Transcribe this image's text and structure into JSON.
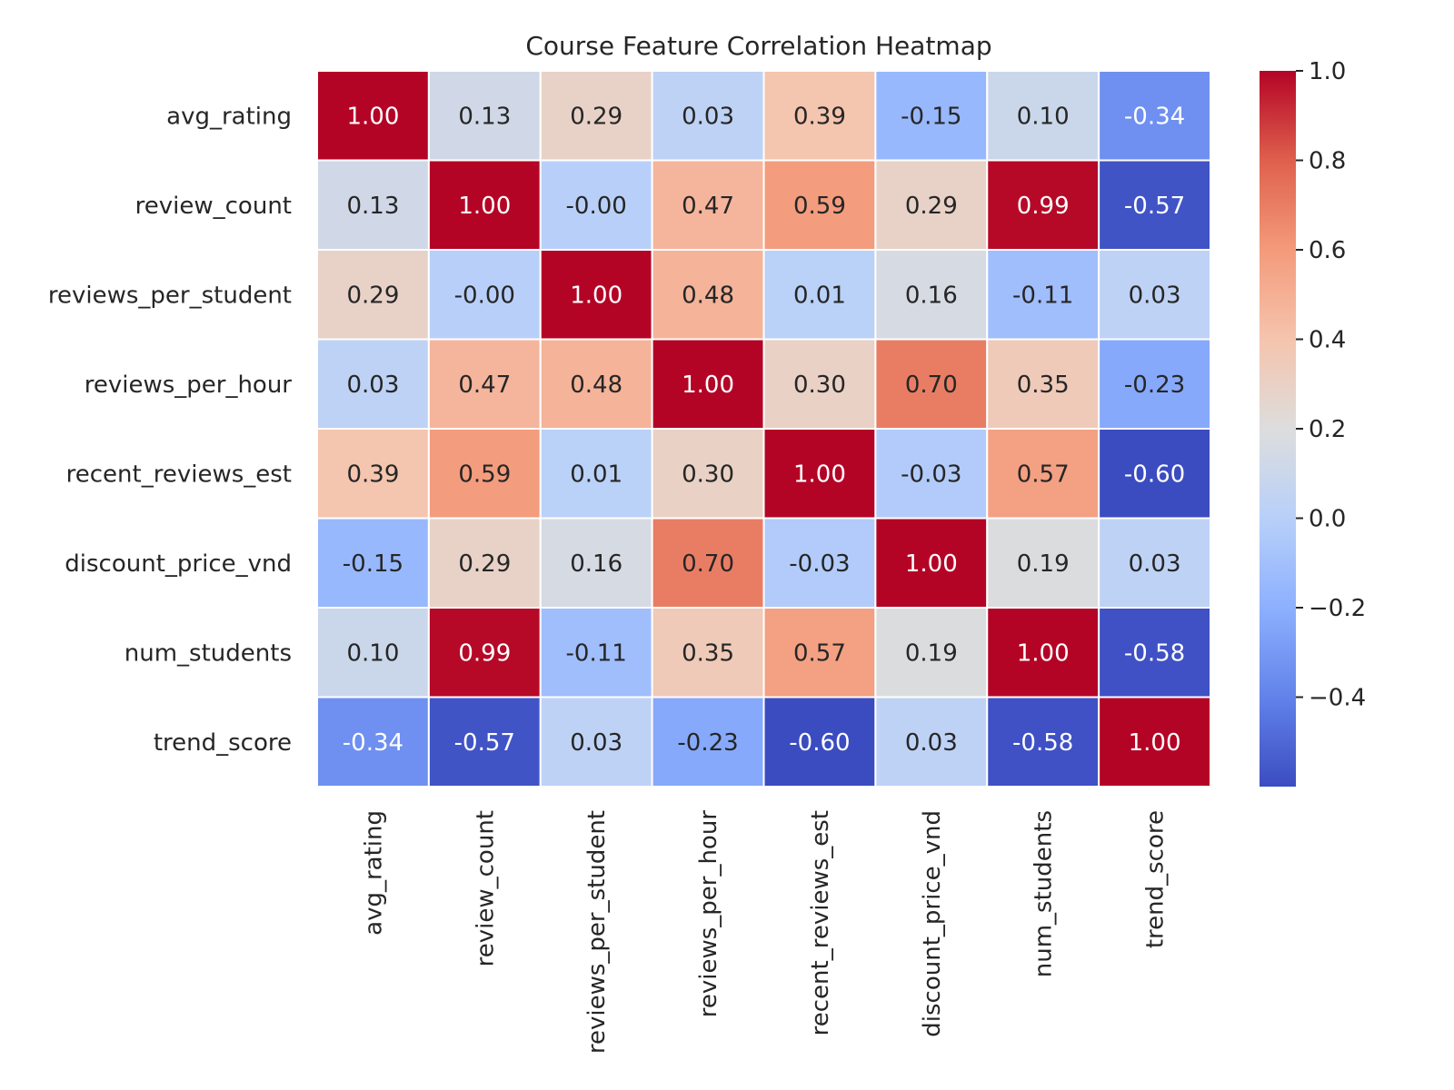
{
  "chart_data": {
    "type": "heatmap",
    "title": "Course Feature Correlation Heatmap",
    "row_labels": [
      "avg_rating",
      "review_count",
      "reviews_per_student",
      "reviews_per_hour",
      "recent_reviews_est",
      "discount_price_vnd",
      "num_students",
      "trend_score"
    ],
    "col_labels": [
      "avg_rating",
      "review_count",
      "reviews_per_student",
      "reviews_per_hour",
      "recent_reviews_est",
      "discount_price_vnd",
      "num_students",
      "trend_score"
    ],
    "values": [
      [
        1.0,
        0.13,
        0.29,
        0.03,
        0.39,
        -0.15,
        0.1,
        -0.34
      ],
      [
        0.13,
        1.0,
        -0.0,
        0.47,
        0.59,
        0.29,
        0.99,
        -0.57
      ],
      [
        0.29,
        -0.0,
        1.0,
        0.48,
        0.01,
        0.16,
        -0.11,
        0.03
      ],
      [
        0.03,
        0.47,
        0.48,
        1.0,
        0.3,
        0.7,
        0.35,
        -0.23
      ],
      [
        0.39,
        0.59,
        0.01,
        0.3,
        1.0,
        -0.03,
        0.57,
        -0.6
      ],
      [
        -0.15,
        0.29,
        0.16,
        0.7,
        -0.03,
        1.0,
        0.19,
        0.03
      ],
      [
        0.1,
        0.99,
        -0.11,
        0.35,
        0.57,
        0.19,
        1.0,
        -0.58
      ],
      [
        -0.34,
        -0.57,
        0.03,
        -0.23,
        -0.6,
        0.03,
        -0.58,
        1.0
      ]
    ],
    "value_format": "0.00",
    "colormap": "coolwarm",
    "vmin": -0.6,
    "vmax": 1.0,
    "grid": true,
    "grid_color": "#ffffff",
    "colorbar": {
      "ticks": [
        -0.4,
        -0.2,
        0.0,
        0.2,
        0.4,
        0.6,
        0.8,
        1.0
      ],
      "tick_labels": [
        "−0.4",
        "−0.2",
        "0.0",
        "0.2",
        "0.4",
        "0.6",
        "0.8",
        "1.0"
      ],
      "placement": "right"
    },
    "xlabel": "",
    "ylabel": ""
  }
}
